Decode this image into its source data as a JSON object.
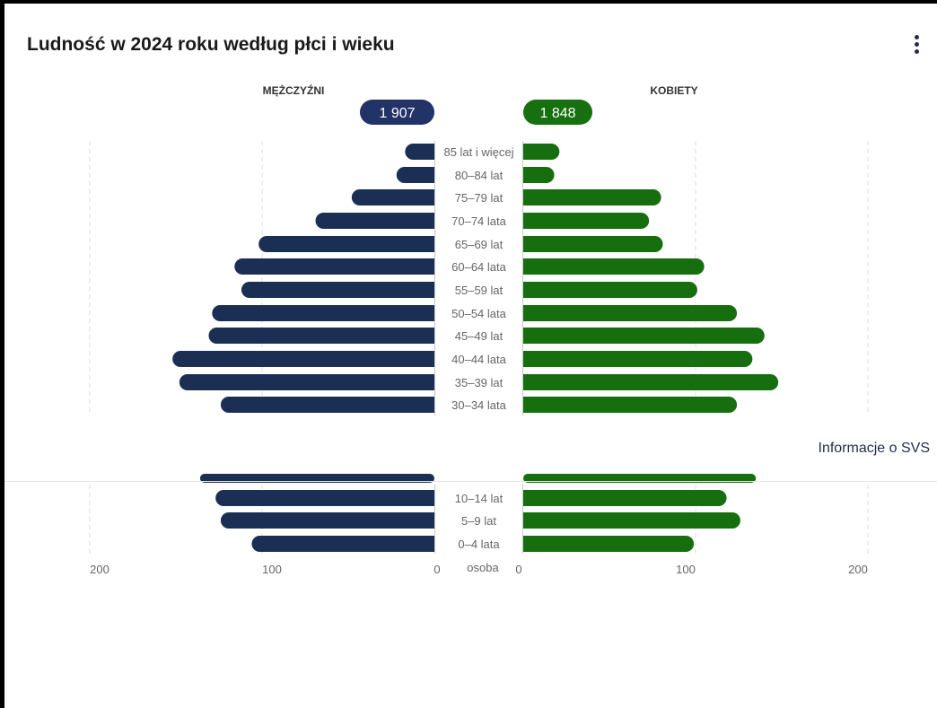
{
  "card": {
    "title": "Ludność w 2024 roku według płci i wieku",
    "menu_icon": "vertical-dots-icon",
    "info_link": "Informacje o SVS"
  },
  "chart_data": {
    "type": "bar",
    "orientation": "horizontal-population-pyramid",
    "title": "Ludność w 2024 roku według płci i wieku",
    "unit_label": "osoba",
    "categories": [
      "85 lat i więcej",
      "80–84 lat",
      "75–79 lat",
      "70–74 lata",
      "65–69 lat",
      "60–64 lata",
      "55–59 lat",
      "50–54 lata",
      "45–49 lat",
      "40–44 lata",
      "35–39 lat",
      "30–34 lata",
      "10–14 lat",
      "5–9 lat",
      "0–4 lata"
    ],
    "series": [
      {
        "name": "MĘŻCZYŹNI",
        "total": "1 907",
        "color": "#1b2f54",
        "badge_color": "#223368",
        "values": [
          17,
          22,
          48,
          69,
          102,
          116,
          112,
          129,
          131,
          152,
          148,
          124,
          127,
          124,
          106
        ]
      },
      {
        "name": "KOBIETY",
        "total": "1 848",
        "color": "#166e0e",
        "badge_color": "#177010",
        "values": [
          21,
          18,
          80,
          73,
          81,
          105,
          101,
          124,
          140,
          133,
          148,
          124,
          118,
          126,
          99
        ]
      }
    ],
    "xlim": [
      0,
      200
    ],
    "left_ticks": [
      "200",
      "100",
      "0"
    ],
    "right_ticks": [
      "0",
      "100",
      "200"
    ],
    "grid": "vertical-dashed",
    "partially_hidden_bar_values": {
      "male": 136,
      "female": 135
    }
  }
}
